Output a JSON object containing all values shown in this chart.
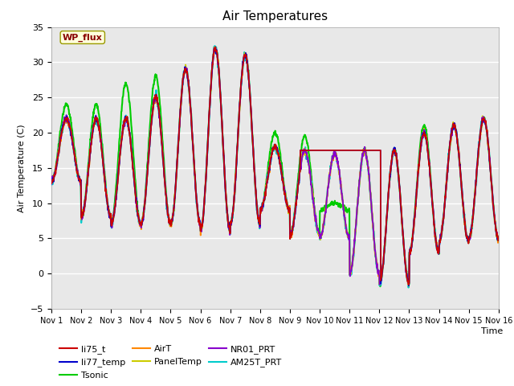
{
  "title": "Air Temperatures",
  "xlabel": "Time",
  "ylabel": "Air Temperature (C)",
  "ylim": [
    -5,
    35
  ],
  "xlim": [
    0,
    15
  ],
  "x_tick_labels": [
    "Nov 1",
    "Nov 2",
    "Nov 3",
    "Nov 4",
    "Nov 5",
    "Nov 6",
    "Nov 7",
    "Nov 8",
    "Nov 9",
    "Nov 10",
    "Nov 11",
    "Nov 12",
    "Nov 13",
    "Nov 14",
    "Nov 15",
    "Nov 16"
  ],
  "bg_color": "#e8e8e8",
  "annotation_text": "WP_flux",
  "annotation_bg": "#ffffdd",
  "annotation_border": "#999900",
  "annotation_text_color": "#880000",
  "series": {
    "li75_t": {
      "color": "#cc0000",
      "lw": 1.2,
      "zorder": 5
    },
    "li77_temp": {
      "color": "#0000cc",
      "lw": 1.2,
      "zorder": 5
    },
    "Tsonic": {
      "color": "#00cc00",
      "lw": 1.5,
      "zorder": 3
    },
    "AirT": {
      "color": "#ff8800",
      "lw": 1.3,
      "zorder": 4
    },
    "PanelTemp": {
      "color": "#cccc00",
      "lw": 1.2,
      "zorder": 4
    },
    "NR01_PRT": {
      "color": "#8800cc",
      "lw": 1.3,
      "zorder": 4
    },
    "AM25T_PRT": {
      "color": "#00cccc",
      "lw": 1.5,
      "zorder": 3
    }
  },
  "peaks": [
    22,
    22,
    22,
    25,
    29,
    32,
    31,
    18,
    17.5,
    17.0,
    17.5,
    17.5,
    20,
    21,
    22
  ],
  "troughs": [
    13,
    8,
    7,
    7,
    7,
    6,
    7,
    9,
    5.5,
    5.0,
    0.0,
    -1.5,
    3,
    4.5,
    5
  ],
  "tsonic_peaks": [
    24,
    24,
    27,
    28,
    29,
    32,
    31,
    20,
    19.5,
    10.0,
    17.5,
    17.5,
    21,
    21,
    22
  ],
  "tsonic_troughs": [
    13,
    8,
    7,
    7,
    7,
    6,
    7,
    9,
    5.5,
    9.0,
    0.0,
    -1.5,
    3,
    4.5,
    5
  ],
  "flat_val": 17.5,
  "flat_start_day": 8.35,
  "flat_end_day": 11.05,
  "legend_ncol": 3
}
